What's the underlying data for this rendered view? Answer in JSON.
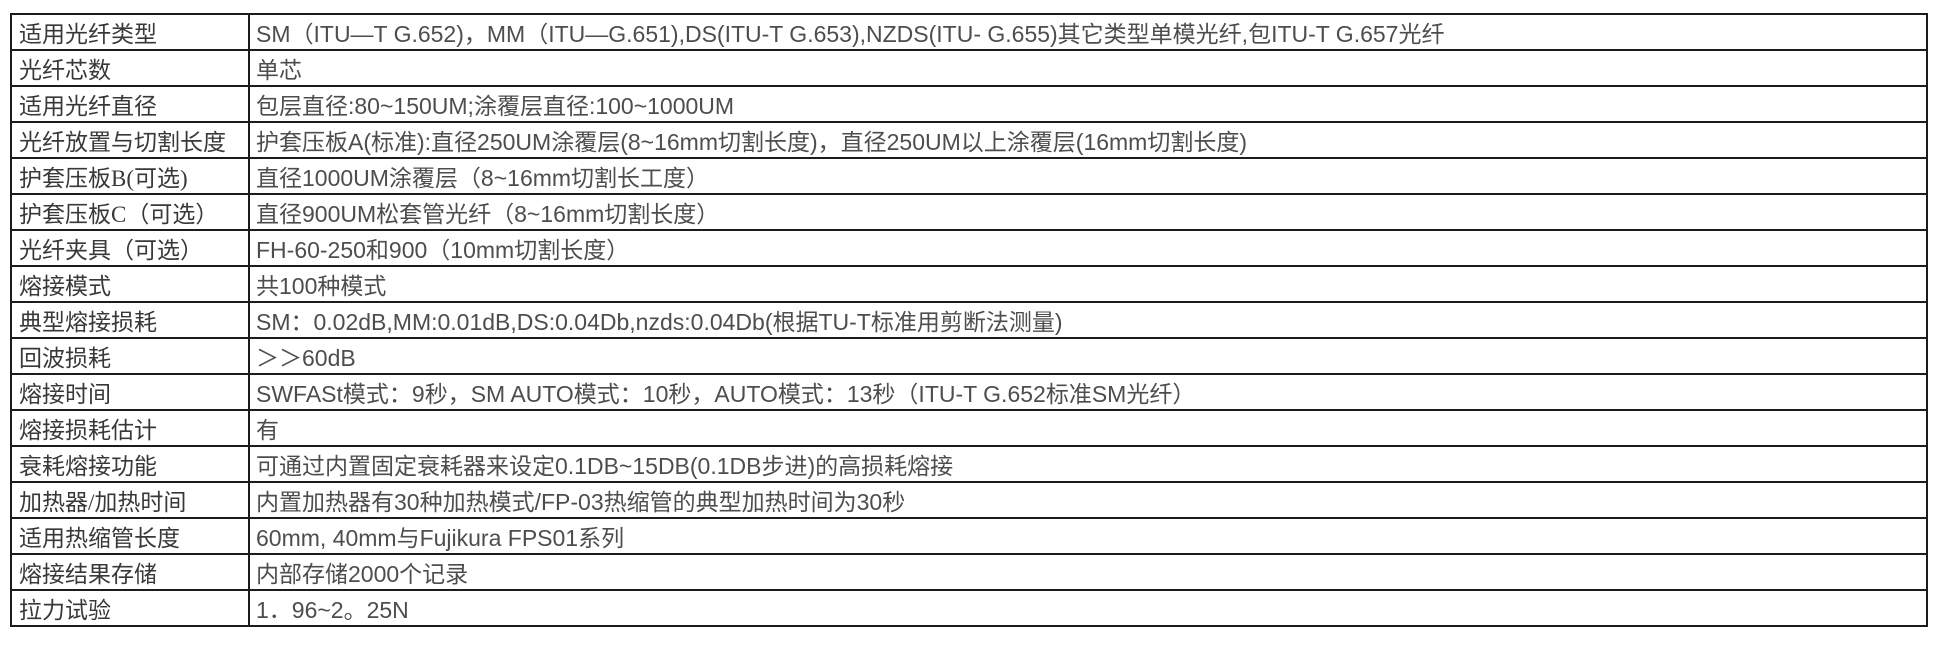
{
  "table": {
    "colors": {
      "border": "#1c1c1c",
      "label_text": "#383838",
      "value_text": "#4d4d4d",
      "background": "#ffffff"
    },
    "rows": [
      {
        "label": "适用光纤类型",
        "value": "SM（ITU—T G.652)，MM（ITU—G.651),DS(ITU-T G.653),NZDS(ITU- G.655)其它类型单模光纤,包ITU-T G.657光纤"
      },
      {
        "label": "光纤芯数",
        "value": "单芯"
      },
      {
        "label": "适用光纤直径",
        "value": "包层直径:80~150UM;涂覆层直径:100~1000UM"
      },
      {
        "label": "光纤放置与切割长度",
        "value": "护套压板A(标准):直径250UM涂覆层(8~16mm切割长度)，直径250UM以上涂覆层(16mm切割长度)"
      },
      {
        "label": "护套压板B(可选)",
        "value": "直径1000UM涂覆层（8~16mm切割长工度）"
      },
      {
        "label": "护套压板C（可选）",
        "value": "直径900UM松套管光纤（8~16mm切割长度）"
      },
      {
        "label": "光纤夹具（可选）",
        "value": "FH-60-250和900（10mm切割长度）"
      },
      {
        "label": "熔接模式",
        "value": "共100种模式"
      },
      {
        "label": "典型熔接损耗",
        "value": "SM：0.02dB,MM:0.01dB,DS:0.04Db,nzds:0.04Db(根据TU-T标准用剪断法测量)"
      },
      {
        "label": "回波损耗",
        "value": "＞＞60dB"
      },
      {
        "label": "熔接时间",
        "value": "SWFASt模式：9秒，SM AUTO模式：10秒，AUTO模式：13秒（ITU-T G.652标准SM光纤）"
      },
      {
        "label": "熔接损耗估计",
        "value": "有"
      },
      {
        "label": "衰耗熔接功能",
        "value": "可通过内置固定衰耗器来设定0.1DB~15DB(0.1DB步进)的高损耗熔接"
      },
      {
        "label": "加热器/加热时间",
        "value": "内置加热器有30种加热模式/FP-03热缩管的典型加热时间为30秒"
      },
      {
        "label": "适用热缩管长度",
        "value": "60mm, 40mm与Fujikura FPS01系列"
      },
      {
        "label": "熔接结果存储",
        "value": "内部存储2000个记录"
      },
      {
        "label": "拉力试验",
        "value": "1．96~2。25N"
      }
    ]
  }
}
